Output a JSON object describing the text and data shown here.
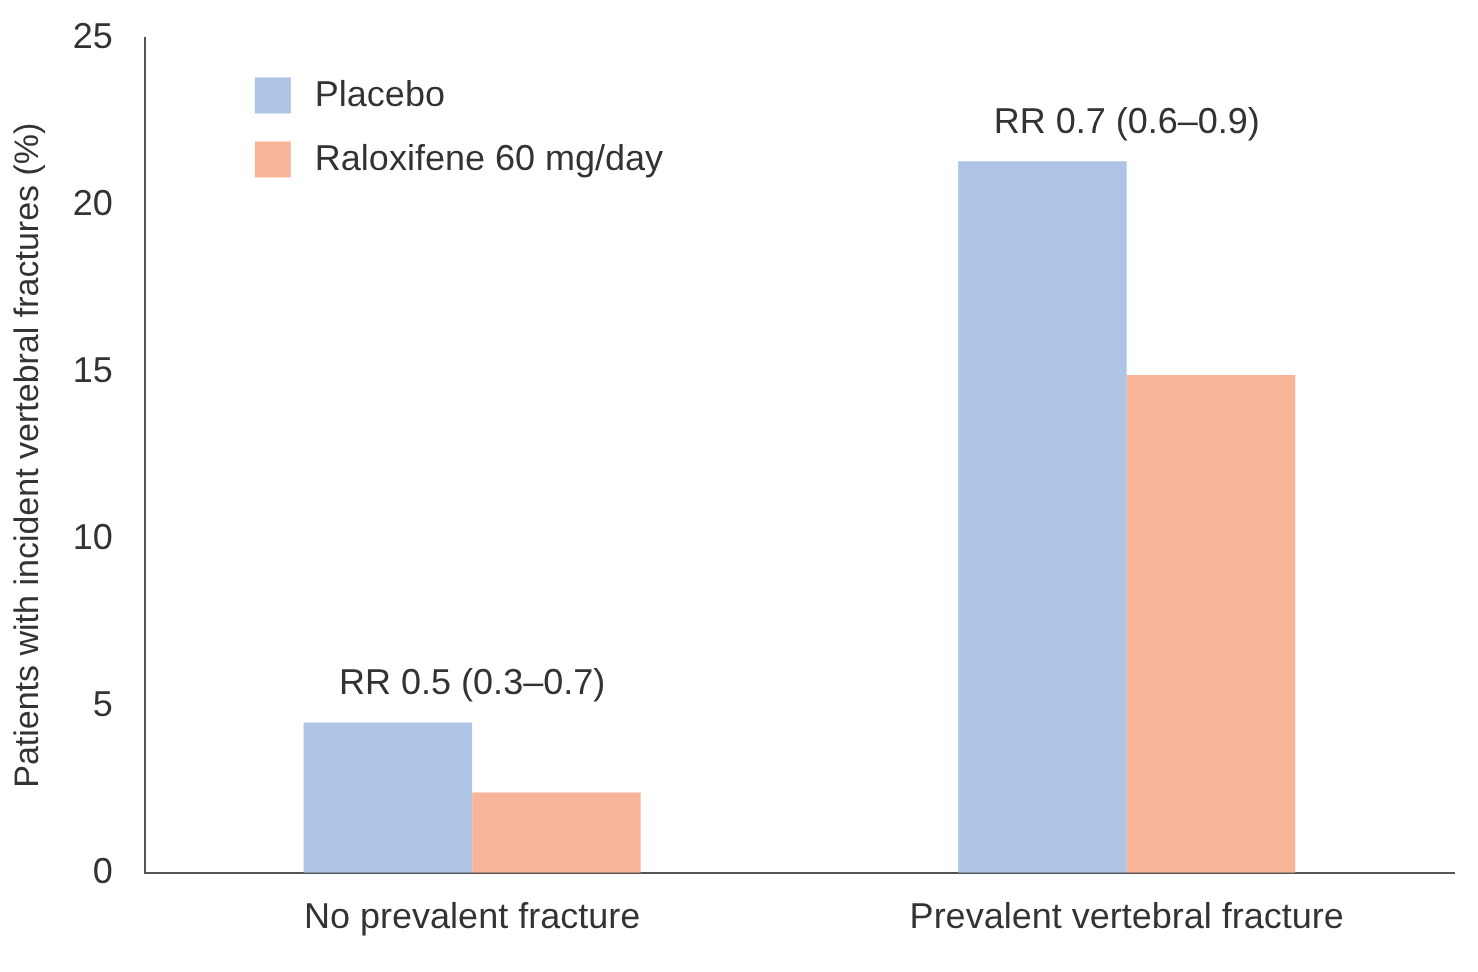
{
  "chart_data": {
    "type": "bar",
    "ylabel": "Patients with incident vertebral fractures (%)",
    "categories": [
      "No prevalent fracture",
      "Prevalent vertebral fracture"
    ],
    "series": [
      {
        "name": "Placebo",
        "color": "#aec4e5",
        "values": [
          4.5,
          21.3
        ]
      },
      {
        "name": "Raloxifene 60 mg/day",
        "color": "#f9b59a",
        "values": [
          2.4,
          14.9
        ]
      }
    ],
    "ylim": [
      0,
      25
    ],
    "yticks": [
      0,
      5,
      10,
      15,
      20,
      25
    ],
    "grid": false,
    "legend": "top left",
    "annotations": [
      "RR 0.5 (0.3–0.7)",
      "RR 0.7 (0.6–0.9)"
    ]
  }
}
